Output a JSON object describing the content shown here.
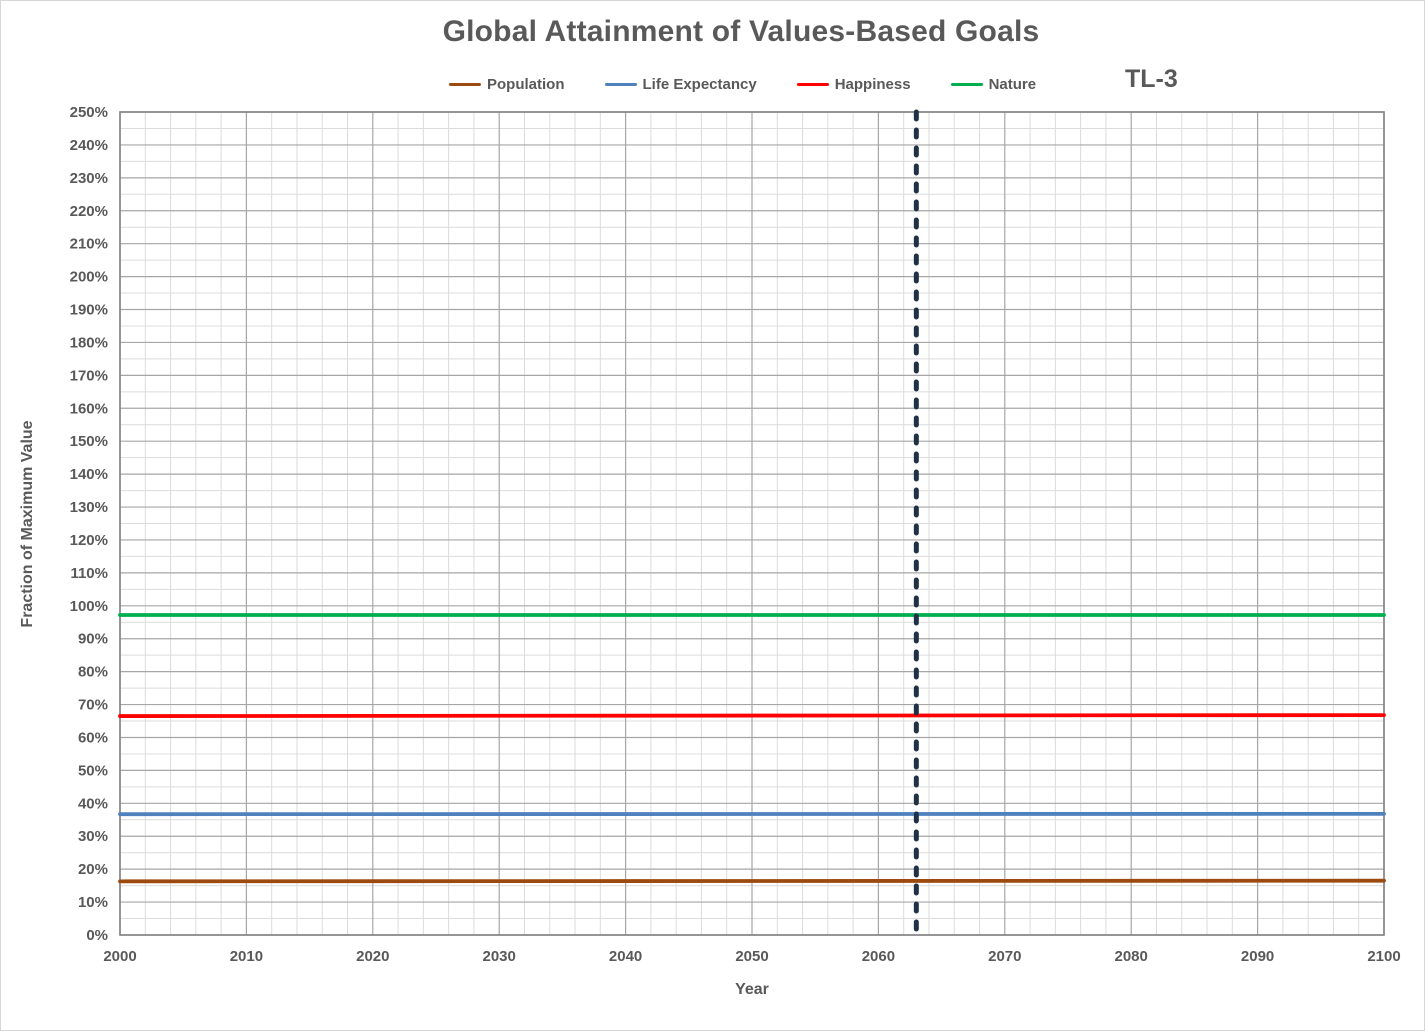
{
  "title": "Global Attainment of Values-Based Goals",
  "scenario_label": "TL-3",
  "colors": {
    "text": "#595959",
    "grid_major": "#a6a6a6",
    "grid_minor": "#dcdcdc",
    "plot_border": "#808080",
    "background": "#ffffff"
  },
  "chart_data": {
    "type": "line",
    "title": "Global Attainment of Values-Based Goals",
    "xlabel": "Year",
    "ylabel": "Fraction of Maximum Value",
    "xlim": [
      2000,
      2100
    ],
    "ylim_pct": [
      0,
      250
    ],
    "x_major_step": 10,
    "x_minor_step": 2,
    "y_major_step_pct": 10,
    "y_minor_step_pct": 5,
    "y_tick_suffix": "%",
    "grid": true,
    "legend_position": "top-center",
    "series": [
      {
        "name": "Population",
        "color": "#9c4a0f",
        "x": [
          2000,
          2100
        ],
        "values_pct": [
          16.3,
          16.5
        ]
      },
      {
        "name": "Life Expectancy",
        "color": "#4f81bd",
        "x": [
          2000,
          2100
        ],
        "values_pct": [
          36.7,
          36.8
        ]
      },
      {
        "name": "Happiness",
        "color": "#ff0000",
        "x": [
          2000,
          2100
        ],
        "values_pct": [
          66.5,
          66.8
        ]
      },
      {
        "name": "Nature",
        "color": "#00ae50",
        "x": [
          2000,
          2100
        ],
        "values_pct": [
          97.2,
          97.2
        ]
      }
    ],
    "annotations": [
      {
        "type": "vline",
        "x": 2063,
        "color": "#1f3245",
        "style": "dashed"
      }
    ]
  }
}
